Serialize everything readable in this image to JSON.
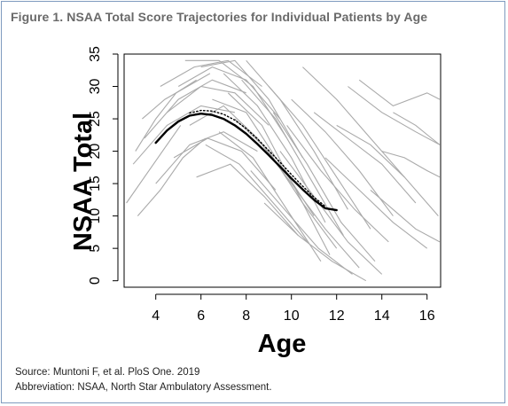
{
  "figure": {
    "title": "Figure 1. NSAA Total Score Trajectories for Individual Patients by Age",
    "source": "Source: Muntoni F, et al. PloS One. 2019",
    "abbreviation": "Abbreviation: NSAA, North Star Ambulatory Assessment."
  },
  "colors": {
    "title_gray": "#6a6a6a",
    "trajectory_gray": "#aaaaaa",
    "mean_curve": "#000000",
    "frame_border": "#7f9bbf"
  },
  "chart_data": {
    "type": "line",
    "title": "",
    "xlabel": "Age",
    "ylabel": "NSAA Total",
    "xlim": [
      2.6,
      16.6
    ],
    "ylim": [
      -1,
      35
    ],
    "xticks": [
      4,
      6,
      8,
      10,
      12,
      14,
      16
    ],
    "yticks": [
      0,
      5,
      10,
      15,
      20,
      25,
      30,
      35
    ],
    "grid": false,
    "legend": "none",
    "series": [
      {
        "style": "solid-black",
        "x": [
          4,
          4.5,
          5,
          5.5,
          6,
          6.5,
          7,
          7.5,
          8,
          8.5,
          9,
          9.5,
          10,
          10.5,
          11,
          11.5,
          12
        ],
        "y": [
          21.3,
          23.2,
          24.6,
          25.5,
          25.8,
          25.6,
          25.0,
          24.0,
          22.7,
          21.1,
          19.4,
          17.6,
          15.8,
          14.1,
          12.5,
          11.2,
          10.9
        ]
      },
      {
        "style": "dotted-black",
        "x": [
          5.5,
          6,
          6.5,
          7,
          7.5,
          8,
          8.5,
          9,
          9.5,
          10,
          10.5,
          11,
          11.5
        ],
        "y": [
          25.9,
          26.3,
          26.2,
          25.7,
          24.8,
          23.5,
          21.9,
          20.1,
          18.3,
          16.4,
          14.6,
          12.9,
          11.5
        ]
      }
    ],
    "individual_trajectories": [
      {
        "x": [
          3.0,
          4.5,
          6.0,
          7.5
        ],
        "y": [
          18,
          24,
          27,
          26
        ]
      },
      {
        "x": [
          3.5,
          5.0,
          6.5,
          8.0
        ],
        "y": [
          22,
          28,
          31,
          29
        ]
      },
      {
        "x": [
          4.0,
          5.5,
          7.0,
          8.5
        ],
        "y": [
          15,
          21,
          23,
          20
        ]
      },
      {
        "x": [
          3.2,
          4.2,
          5.2,
          6.2
        ],
        "y": [
          10,
          14,
          19,
          22
        ]
      },
      {
        "x": [
          4.5,
          6.0,
          7.5,
          9.0
        ],
        "y": [
          26,
          30,
          29,
          24
        ]
      },
      {
        "x": [
          5.0,
          6.5,
          8.0,
          9.5
        ],
        "y": [
          30,
          33,
          31,
          25
        ]
      },
      {
        "x": [
          5.5,
          7.0,
          8.5,
          10.0
        ],
        "y": [
          24,
          27,
          22,
          15
        ]
      },
      {
        "x": [
          6.0,
          7.5,
          9.0,
          10.5
        ],
        "y": [
          33,
          34,
          28,
          19
        ]
      },
      {
        "x": [
          6.5,
          8.0,
          9.5,
          11.0
        ],
        "y": [
          28,
          26,
          18,
          10
        ]
      },
      {
        "x": [
          7.0,
          8.5,
          10.0,
          11.5
        ],
        "y": [
          32,
          27,
          19,
          9
        ]
      },
      {
        "x": [
          7.5,
          9.0,
          10.5,
          12.0
        ],
        "y": [
          25,
          20,
          12,
          5
        ]
      },
      {
        "x": [
          8.0,
          9.5,
          11.0,
          12.5
        ],
        "y": [
          34,
          28,
          20,
          11
        ]
      },
      {
        "x": [
          8.5,
          10.0,
          11.5,
          13.0
        ],
        "y": [
          22,
          15,
          8,
          2
        ]
      },
      {
        "x": [
          9.0,
          10.5,
          12.0,
          13.5
        ],
        "y": [
          30,
          24,
          16,
          8
        ]
      },
      {
        "x": [
          9.5,
          11.0,
          12.5,
          14.0
        ],
        "y": [
          20,
          13,
          6,
          1
        ]
      },
      {
        "x": [
          10.0,
          11.5,
          13.0,
          14.5
        ],
        "y": [
          28,
          23,
          17,
          10
        ]
      },
      {
        "x": [
          11.0,
          12.5,
          14.0,
          15.5
        ],
        "y": [
          26,
          22,
          18,
          12
        ]
      },
      {
        "x": [
          12.0,
          13.5,
          15.0,
          16.5
        ],
        "y": [
          24,
          21,
          16,
          10
        ]
      },
      {
        "x": [
          13.0,
          14.5,
          16.0,
          16.6
        ],
        "y": [
          31,
          27,
          29,
          28
        ]
      },
      {
        "x": [
          14.0,
          15.0,
          16.0,
          16.6
        ],
        "y": [
          20,
          19,
          17,
          16
        ]
      },
      {
        "x": [
          2.7,
          3.5,
          4.3,
          5.1
        ],
        "y": [
          12,
          16,
          20,
          24
        ]
      },
      {
        "x": [
          3.1,
          4.0,
          4.9,
          5.8
        ],
        "y": [
          20,
          25,
          29,
          31
        ]
      },
      {
        "x": [
          4.8,
          6.3,
          7.8,
          9.3
        ],
        "y": [
          19,
          22,
          20,
          14
        ]
      },
      {
        "x": [
          5.3,
          6.8,
          8.3,
          9.8
        ],
        "y": [
          34,
          34,
          30,
          22
        ]
      },
      {
        "x": [
          6.2,
          7.7,
          9.2,
          10.7
        ],
        "y": [
          21,
          18,
          12,
          6
        ]
      },
      {
        "x": [
          7.2,
          8.7,
          10.2,
          11.7
        ],
        "y": [
          29,
          24,
          14,
          4
        ]
      },
      {
        "x": [
          8.2,
          9.7,
          11.2,
          12.7
        ],
        "y": [
          17,
          11,
          5,
          1
        ]
      },
      {
        "x": [
          9.2,
          10.7,
          12.2,
          13.7
        ],
        "y": [
          26,
          18,
          9,
          3
        ]
      },
      {
        "x": [
          10.5,
          12.0,
          13.5,
          15.0
        ],
        "y": [
          33,
          28,
          22,
          16
        ]
      },
      {
        "x": [
          11.5,
          13.0,
          14.5,
          16.0
        ],
        "y": [
          19,
          14,
          9,
          5
        ]
      },
      {
        "x": [
          12.5,
          14.0,
          15.5,
          16.6
        ],
        "y": [
          30,
          26,
          23,
          21
        ]
      },
      {
        "x": [
          4.2,
          5.7,
          7.2,
          8.7
        ],
        "y": [
          30,
          33,
          34,
          30
        ]
      },
      {
        "x": [
          5.8,
          7.3,
          8.8,
          10.3
        ],
        "y": [
          16,
          18,
          13,
          7
        ]
      },
      {
        "x": [
          6.8,
          8.3,
          9.8,
          11.3
        ],
        "y": [
          23,
          19,
          11,
          3
        ]
      },
      {
        "x": [
          7.8,
          9.3,
          10.8,
          12.3
        ],
        "y": [
          31,
          25,
          16,
          7
        ]
      },
      {
        "x": [
          8.8,
          10.3,
          11.8,
          13.3
        ],
        "y": [
          12,
          7,
          3,
          0
        ]
      },
      {
        "x": [
          9.8,
          11.3,
          12.8,
          14.3
        ],
        "y": [
          24,
          17,
          11,
          6
        ]
      },
      {
        "x": [
          3.4,
          4.4,
          5.4,
          6.4
        ],
        "y": [
          25,
          28,
          30,
          32
        ]
      },
      {
        "x": [
          13.5,
          14.5,
          15.5,
          16.6
        ],
        "y": [
          14,
          11,
          8,
          6
        ]
      },
      {
        "x": [
          14.5,
          15.5,
          16.2,
          16.6
        ],
        "y": [
          26,
          24,
          22,
          21
        ]
      }
    ]
  }
}
